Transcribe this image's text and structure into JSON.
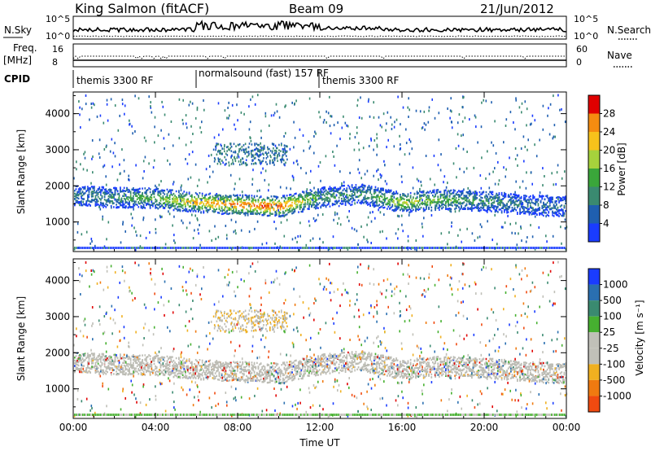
{
  "header": {
    "station": "King Salmon (fitACF)",
    "beam": "Beam 09",
    "date": "21/Jun/2012"
  },
  "noise_panel": {
    "left_label": "N.Sky",
    "right_label": "N.Search",
    "left_ticks": [
      "10^5",
      "10^0"
    ],
    "right_ticks": [
      "10^5",
      "10^0"
    ]
  },
  "freq_panel": {
    "left_label_line1": "Freq.",
    "left_label_line2": "[MHz]",
    "right_label": "Nave",
    "left_ticks": [
      "16",
      "8"
    ],
    "right_ticks": [
      "60",
      "0"
    ]
  },
  "cpid": {
    "label": "CPID",
    "segments": [
      {
        "label": "themis 3300 RF",
        "start_hour": 0
      },
      {
        "label": "normalsound (fast) 157 RF",
        "start_hour": 6
      },
      {
        "label": "themis 3300 RF",
        "start_hour": 12
      }
    ]
  },
  "colors": {
    "power_scale": [
      "#1a3cff",
      "#1f5fb0",
      "#3a8a70",
      "#3aa63a",
      "#a6d23c",
      "#f7c21b",
      "#f58c10",
      "#f04a10",
      "#e00000"
    ],
    "velocity_scale": [
      "#1a3cff",
      "#2a6fb0",
      "#3a8a70",
      "#46b030",
      "#c0c0b8",
      "#c0c0b8",
      "#f0b020",
      "#f07a10",
      "#f04a10",
      "#e00000"
    ],
    "ground_scatter": "#bcbcb4"
  },
  "chart_data": [
    {
      "type": "heatmap",
      "title": "",
      "xlabel": "Time UT",
      "ylabel": "Slant Range [km]",
      "xlim": [
        0,
        24
      ],
      "ylim": [
        180,
        4600
      ],
      "x_ticks": [
        "00:00",
        "04:00",
        "08:00",
        "12:00",
        "16:00",
        "20:00",
        "00:00"
      ],
      "y_ticks": [
        "1000",
        "2000",
        "3000",
        "4000"
      ],
      "colorbar": {
        "label": "Power [dB]",
        "range": [
          0,
          32
        ],
        "ticks": [
          "4",
          "8",
          "12",
          "16",
          "20",
          "24",
          "28"
        ]
      },
      "main_echo_band": {
        "hours": [
          0,
          2,
          4,
          6,
          8,
          10,
          12,
          14,
          16,
          18,
          20,
          22,
          24
        ],
        "center_km": [
          1750,
          1700,
          1680,
          1560,
          1500,
          1450,
          1700,
          1800,
          1560,
          1650,
          1600,
          1500,
          1450
        ],
        "peak_power_db": [
          8,
          10,
          14,
          22,
          26,
          28,
          12,
          10,
          18,
          14,
          10,
          8,
          6
        ]
      }
    },
    {
      "type": "heatmap",
      "title": "",
      "xlabel": "Time UT",
      "ylabel": "Slant Range [km]",
      "xlim": [
        0,
        24
      ],
      "ylim": [
        180,
        4600
      ],
      "x_ticks": [
        "00:00",
        "04:00",
        "08:00",
        "12:00",
        "16:00",
        "20:00",
        "00:00"
      ],
      "y_ticks": [
        "1000",
        "2000",
        "3000",
        "4000"
      ],
      "colorbar": {
        "label": "Velocity [m s⁻¹]",
        "ticks": [
          "1000",
          "500",
          "100",
          "25",
          "-25",
          "-100",
          "-500",
          "-1000"
        ]
      }
    }
  ]
}
